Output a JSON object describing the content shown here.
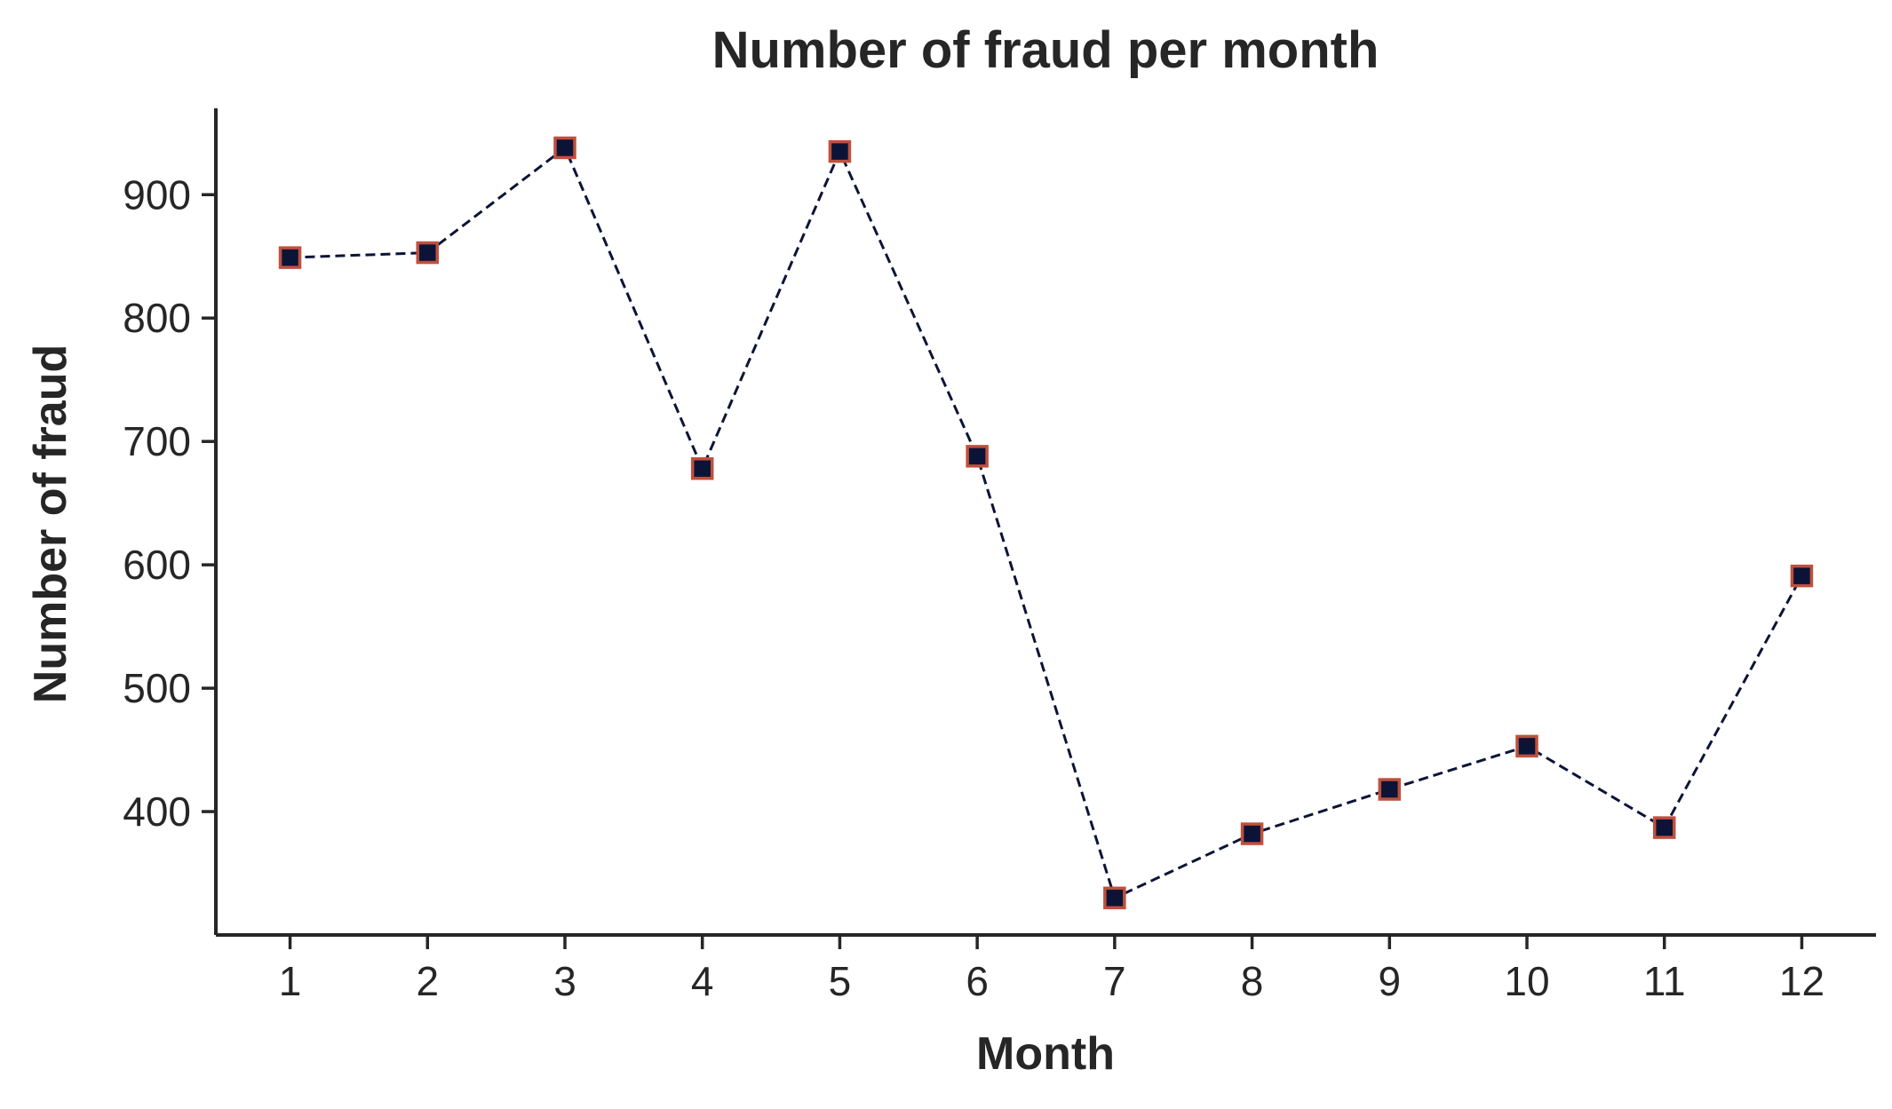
{
  "chart_data": {
    "type": "line",
    "title": "Number of fraud per month",
    "xlabel": "Month",
    "ylabel": "Number of fraud",
    "x": [
      1,
      2,
      3,
      4,
      5,
      6,
      7,
      8,
      9,
      10,
      11,
      12
    ],
    "x_tick_labels": [
      "1",
      "2",
      "3",
      "4",
      "5",
      "6",
      "7",
      "8",
      "9",
      "10",
      "11",
      "12"
    ],
    "y_ticks": [
      400,
      500,
      600,
      700,
      800,
      900
    ],
    "y_tick_labels": [
      "400",
      "500",
      "600",
      "700",
      "800",
      "900"
    ],
    "xlim": [
      0.46,
      12.54
    ],
    "ylim": [
      300,
      970
    ],
    "series": [
      {
        "values": [
          849,
          853,
          938,
          678,
          935,
          688,
          330,
          382,
          418,
          453,
          387,
          591
        ]
      }
    ],
    "line_style": "dashed",
    "marker": "square",
    "line_color": "#0b1437",
    "marker_fill": "#0b1437",
    "marker_edge": "#c0503c",
    "axis_color": "#262626",
    "grid": false
  }
}
